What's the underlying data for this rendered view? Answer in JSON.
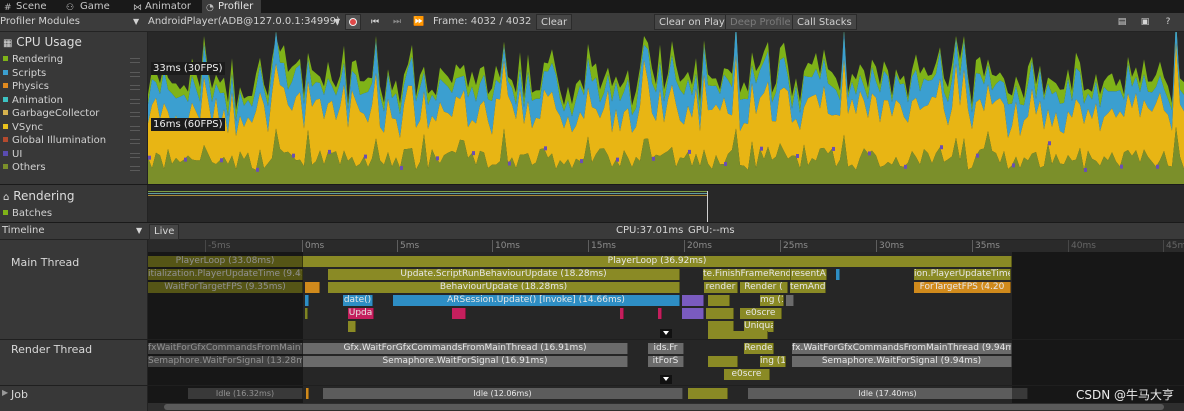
{
  "tabs": [
    {
      "label": "Scene",
      "icon": "hash-icon"
    },
    {
      "label": "Game",
      "icon": "game-controller-icon"
    },
    {
      "label": "Animator",
      "icon": "animator-icon"
    },
    {
      "label": "Profiler",
      "icon": "profiler-icon",
      "active": true
    }
  ],
  "toolbar": {
    "modules_label": "Profiler Modules",
    "target": "AndroidPlayer(ADB@127.0.0.1:34999)",
    "frame": "Frame: 4032 / 4032",
    "clear": "Clear",
    "clear_on_play": "Clear on Play",
    "deep_profile": "Deep Profile",
    "call_stacks": "Call Stacks"
  },
  "cpu_module": {
    "title": "CPU Usage",
    "legend": [
      {
        "label": "Rendering",
        "color": "#7fb318"
      },
      {
        "label": "Scripts",
        "color": "#3b9fd0"
      },
      {
        "label": "Physics",
        "color": "#e08a1e"
      },
      {
        "label": "Animation",
        "color": "#3dc3c3"
      },
      {
        "label": "GarbageCollector",
        "color": "#d6b24e"
      },
      {
        "label": "VSync",
        "color": "#e8c11c"
      },
      {
        "label": "Global Illumination",
        "color": "#b44a2e"
      },
      {
        "label": "UI",
        "color": "#5a4cb0"
      },
      {
        "label": "Others",
        "color": "#7b8f2a"
      }
    ],
    "line_30": "33ms (30FPS)",
    "line_60": "16ms (60FPS)"
  },
  "rendering_module": {
    "title": "Rendering",
    "legend": [
      {
        "label": "Batches",
        "color": "#7fb318"
      }
    ]
  },
  "timeline": {
    "view": "Timeline",
    "live": "Live",
    "cpu": "CPU:37.01ms",
    "gpu": "GPU:--ms",
    "ruler_dim": [
      "-5ms"
    ],
    "ruler": [
      "0ms",
      "5ms",
      "10ms",
      "15ms",
      "20ms",
      "25ms",
      "30ms",
      "35ms"
    ],
    "ruler_dim_right": [
      "40ms",
      "45ms"
    ]
  },
  "threads": {
    "main": "Main Thread",
    "render": "Render Thread",
    "job": "Job"
  },
  "main_bars": {
    "r0a": "PlayerLoop (33.08ms)",
    "r0b": "PlayerLoop (36.92ms)",
    "r1a": "itialization.PlayerUpdateTime (9.41ms",
    "r1b": "Update.ScriptRunBehaviourUpdate (18.28ms)",
    "r1c": "te.FinishFrameRende",
    "r1d": "resentA",
    "r1e": "ion.PlayerUpdateTime (",
    "r2a": "WaitForTargetFPS (9.35ms)",
    "r2b": "BehaviourUpdate (18.28ms)",
    "r2c": "render",
    "r2d": "Render (",
    "r2e": "temAnd",
    "r2f": "ForTargetFPS (4.20",
    "r3a": "date()",
    "r3b": "ARSession.Update() [Invoke] (14.66ms)",
    "r3c": "mg (1.5",
    "r4a": "Upda",
    "r4b": "e0scre",
    "r5a": "Uniqua"
  },
  "render_bars": {
    "r0a": "fxWaitForGfxCommandsFromMainThread (",
    "r0b": "Gfx.WaitForGfxCommandsFromMainThread (16.91ms)",
    "r0c": "ids.Fr",
    "r0d": "Rende",
    "r0e": "fx.WaitForGfxCommandsFromMainThread (9.94m",
    "r1a": "Semaphore.WaitForSignal (13.28ms)",
    "r1b": "Semaphore.WaitForSignal (16.91ms)",
    "r1c": "itForS",
    "r1d": "ing (1.5",
    "r1e": "Semaphore.WaitForSignal (9.94ms)",
    "r2a": "e0scre"
  },
  "job_bars": {
    "a": "Idle (16.32ms)",
    "b": "Idle (12.06ms)",
    "c": "Idle (17.40ms)"
  },
  "watermark": "CSDN @牛马大亨"
}
